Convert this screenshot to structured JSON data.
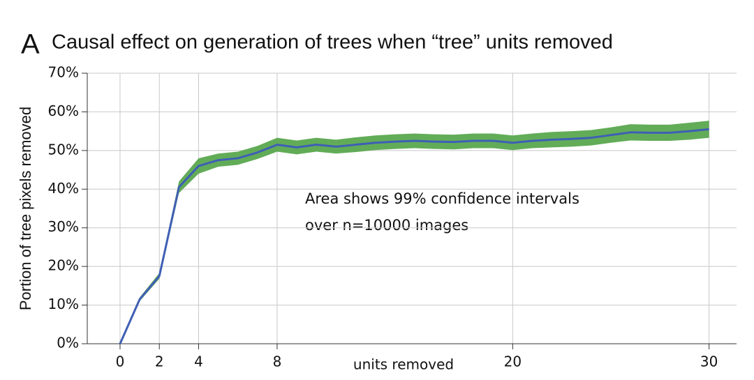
{
  "chart_data": {
    "type": "line",
    "panel_label": "A",
    "title": "Causal effect on generation of trees when “tree” units removed",
    "x_label": "units removed",
    "y_label": "Portion of tree pixels removed",
    "annotation": [
      "Area shows 99% confidence intervals",
      "over n=10000 images"
    ],
    "x": [
      0,
      1,
      2,
      3,
      4,
      5,
      6,
      7,
      8,
      9,
      10,
      11,
      12,
      13,
      14,
      15,
      16,
      17,
      18,
      19,
      20,
      21,
      22,
      23,
      24,
      25,
      26,
      27,
      28,
      29,
      30
    ],
    "series": [
      {
        "color": "#3f5fb5",
        "values": [
          0,
          11.5,
          17.5,
          40.5,
          46,
          47.5,
          48,
          49.5,
          51.5,
          50.8,
          51.5,
          51,
          51.5,
          52,
          52.3,
          52.5,
          52.3,
          52.2,
          52.5,
          52.5,
          52,
          52.5,
          52.8,
          53,
          53.3,
          54,
          54.7,
          54.6,
          54.6,
          55,
          55.5
        ],
        "ci_lower": [
          0,
          11,
          16.8,
          39,
          44,
          45.8,
          46.3,
          47.8,
          49.7,
          49,
          49.7,
          49.2,
          49.6,
          50.1,
          50.4,
          50.6,
          50.4,
          50.3,
          50.6,
          50.6,
          50.1,
          50.6,
          50.8,
          51,
          51.3,
          52,
          52.6,
          52.5,
          52.5,
          52.8,
          53.3
        ],
        "ci_upper": [
          0,
          12,
          18.3,
          42,
          48,
          49.2,
          49.7,
          51.2,
          53.3,
          52.6,
          53.3,
          52.8,
          53.4,
          53.9,
          54.2,
          54.4,
          54.2,
          54.1,
          54.4,
          54.4,
          53.9,
          54.4,
          54.8,
          55,
          55.3,
          56,
          56.8,
          56.7,
          56.7,
          57.2,
          57.7
        ],
        "ci_color": "#5aa84f"
      }
    ],
    "xlim": [
      -1.67,
      31.4
    ],
    "xticks": [
      0,
      2,
      4,
      8,
      20,
      30
    ],
    "ylim": [
      0,
      70
    ],
    "yticks": [
      {
        "value": 0,
        "label": "0%"
      },
      {
        "value": 10,
        "label": "10%"
      },
      {
        "value": 20,
        "label": "20%"
      },
      {
        "value": 30,
        "label": "30%"
      },
      {
        "value": 40,
        "label": "40%"
      },
      {
        "value": 50,
        "label": "50%"
      },
      {
        "value": 60,
        "label": "60%"
      },
      {
        "value": 70,
        "label": "70%"
      }
    ],
    "grid": true
  }
}
